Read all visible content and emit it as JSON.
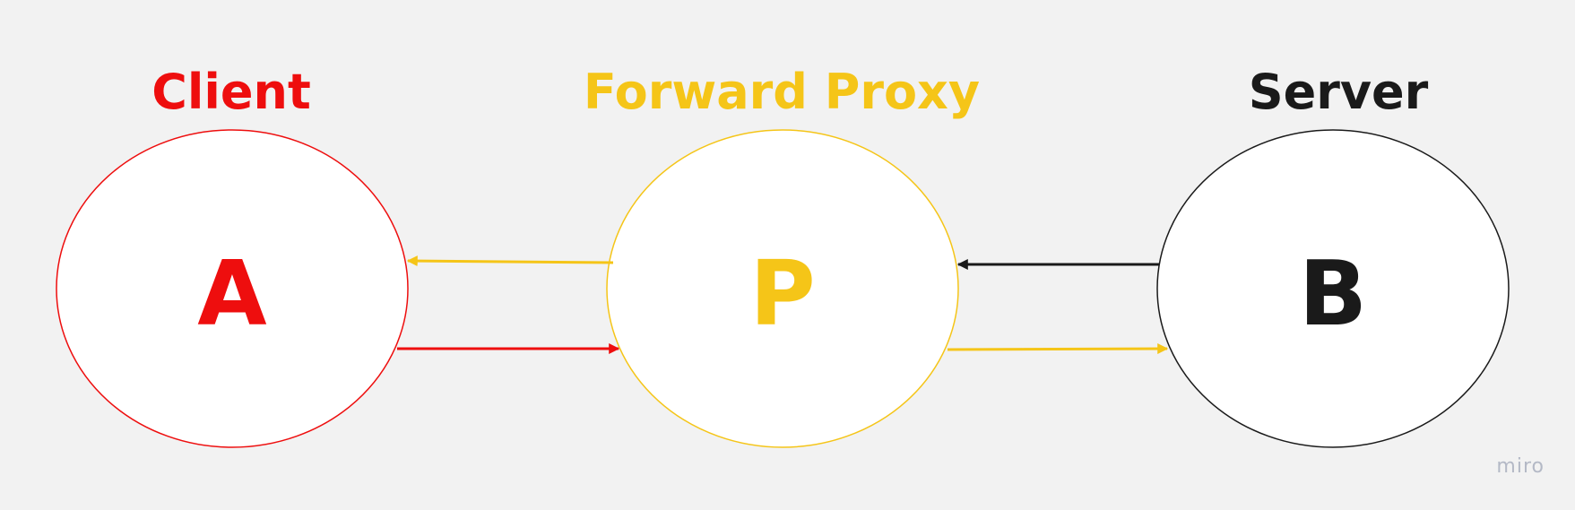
{
  "colors": {
    "background": "#f2f2f2",
    "client": "#ee0e0e",
    "proxy": "#f5c518",
    "server": "#1a1a1a",
    "node_fill": "#ffffff",
    "watermark": "#b4b9c6"
  },
  "nodes": [
    {
      "id": "client",
      "heading": "Client",
      "letter": "A",
      "color_key": "client"
    },
    {
      "id": "proxy",
      "heading": "Forward Proxy",
      "letter": "P",
      "color_key": "proxy"
    },
    {
      "id": "server",
      "heading": "Server",
      "letter": "B",
      "color_key": "server"
    }
  ],
  "edges": [
    {
      "id": "client-to-proxy",
      "from": "client",
      "to": "proxy",
      "color_key": "client"
    },
    {
      "id": "proxy-to-client",
      "from": "proxy",
      "to": "client",
      "color_key": "proxy"
    },
    {
      "id": "proxy-to-server",
      "from": "proxy",
      "to": "server",
      "color_key": "proxy"
    },
    {
      "id": "server-to-proxy",
      "from": "server",
      "to": "proxy",
      "color_key": "server"
    }
  ],
  "watermark": "miro"
}
